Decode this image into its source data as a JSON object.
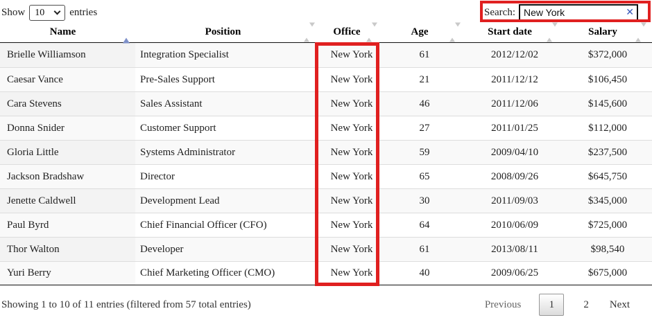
{
  "controls": {
    "show_label": "Show",
    "page_length": "10",
    "entries_label": "entries",
    "search_label": "Search:",
    "search_value": "New York",
    "clear_icon": "✕"
  },
  "table": {
    "columns": [
      {
        "label": "Name",
        "sort": "asc"
      },
      {
        "label": "Position",
        "sort": "none"
      },
      {
        "label": "Office",
        "sort": "none"
      },
      {
        "label": "Age",
        "sort": "none"
      },
      {
        "label": "Start date",
        "sort": "none"
      },
      {
        "label": "Salary",
        "sort": "none"
      }
    ],
    "rows": [
      [
        "Brielle Williamson",
        "Integration Specialist",
        "New York",
        "61",
        "2012/12/02",
        "$372,000"
      ],
      [
        "Caesar Vance",
        "Pre-Sales Support",
        "New York",
        "21",
        "2011/12/12",
        "$106,450"
      ],
      [
        "Cara Stevens",
        "Sales Assistant",
        "New York",
        "46",
        "2011/12/06",
        "$145,600"
      ],
      [
        "Donna Snider",
        "Customer Support",
        "New York",
        "27",
        "2011/01/25",
        "$112,000"
      ],
      [
        "Gloria Little",
        "Systems Administrator",
        "New York",
        "59",
        "2009/04/10",
        "$237,500"
      ],
      [
        "Jackson Bradshaw",
        "Director",
        "New York",
        "65",
        "2008/09/26",
        "$645,750"
      ],
      [
        "Jenette Caldwell",
        "Development Lead",
        "New York",
        "30",
        "2011/09/03",
        "$345,000"
      ],
      [
        "Paul Byrd",
        "Chief Financial Officer (CFO)",
        "New York",
        "64",
        "2010/06/09",
        "$725,000"
      ],
      [
        "Thor Walton",
        "Developer",
        "New York",
        "61",
        "2013/08/11",
        "$98,540"
      ],
      [
        "Yuri Berry",
        "Chief Marketing Officer (CMO)",
        "New York",
        "40",
        "2009/06/25",
        "$675,000"
      ]
    ]
  },
  "footer": {
    "info": "Showing 1 to 10 of 11 entries (filtered from 57 total entries)",
    "pagination": {
      "previous": "Previous",
      "page_1": "1",
      "page_2": "2",
      "next": "Next",
      "current_page": "1"
    }
  },
  "annotations": {
    "highlight_color": "#e02020",
    "highlighted_column": "Office",
    "highlighted_control": "Search"
  }
}
